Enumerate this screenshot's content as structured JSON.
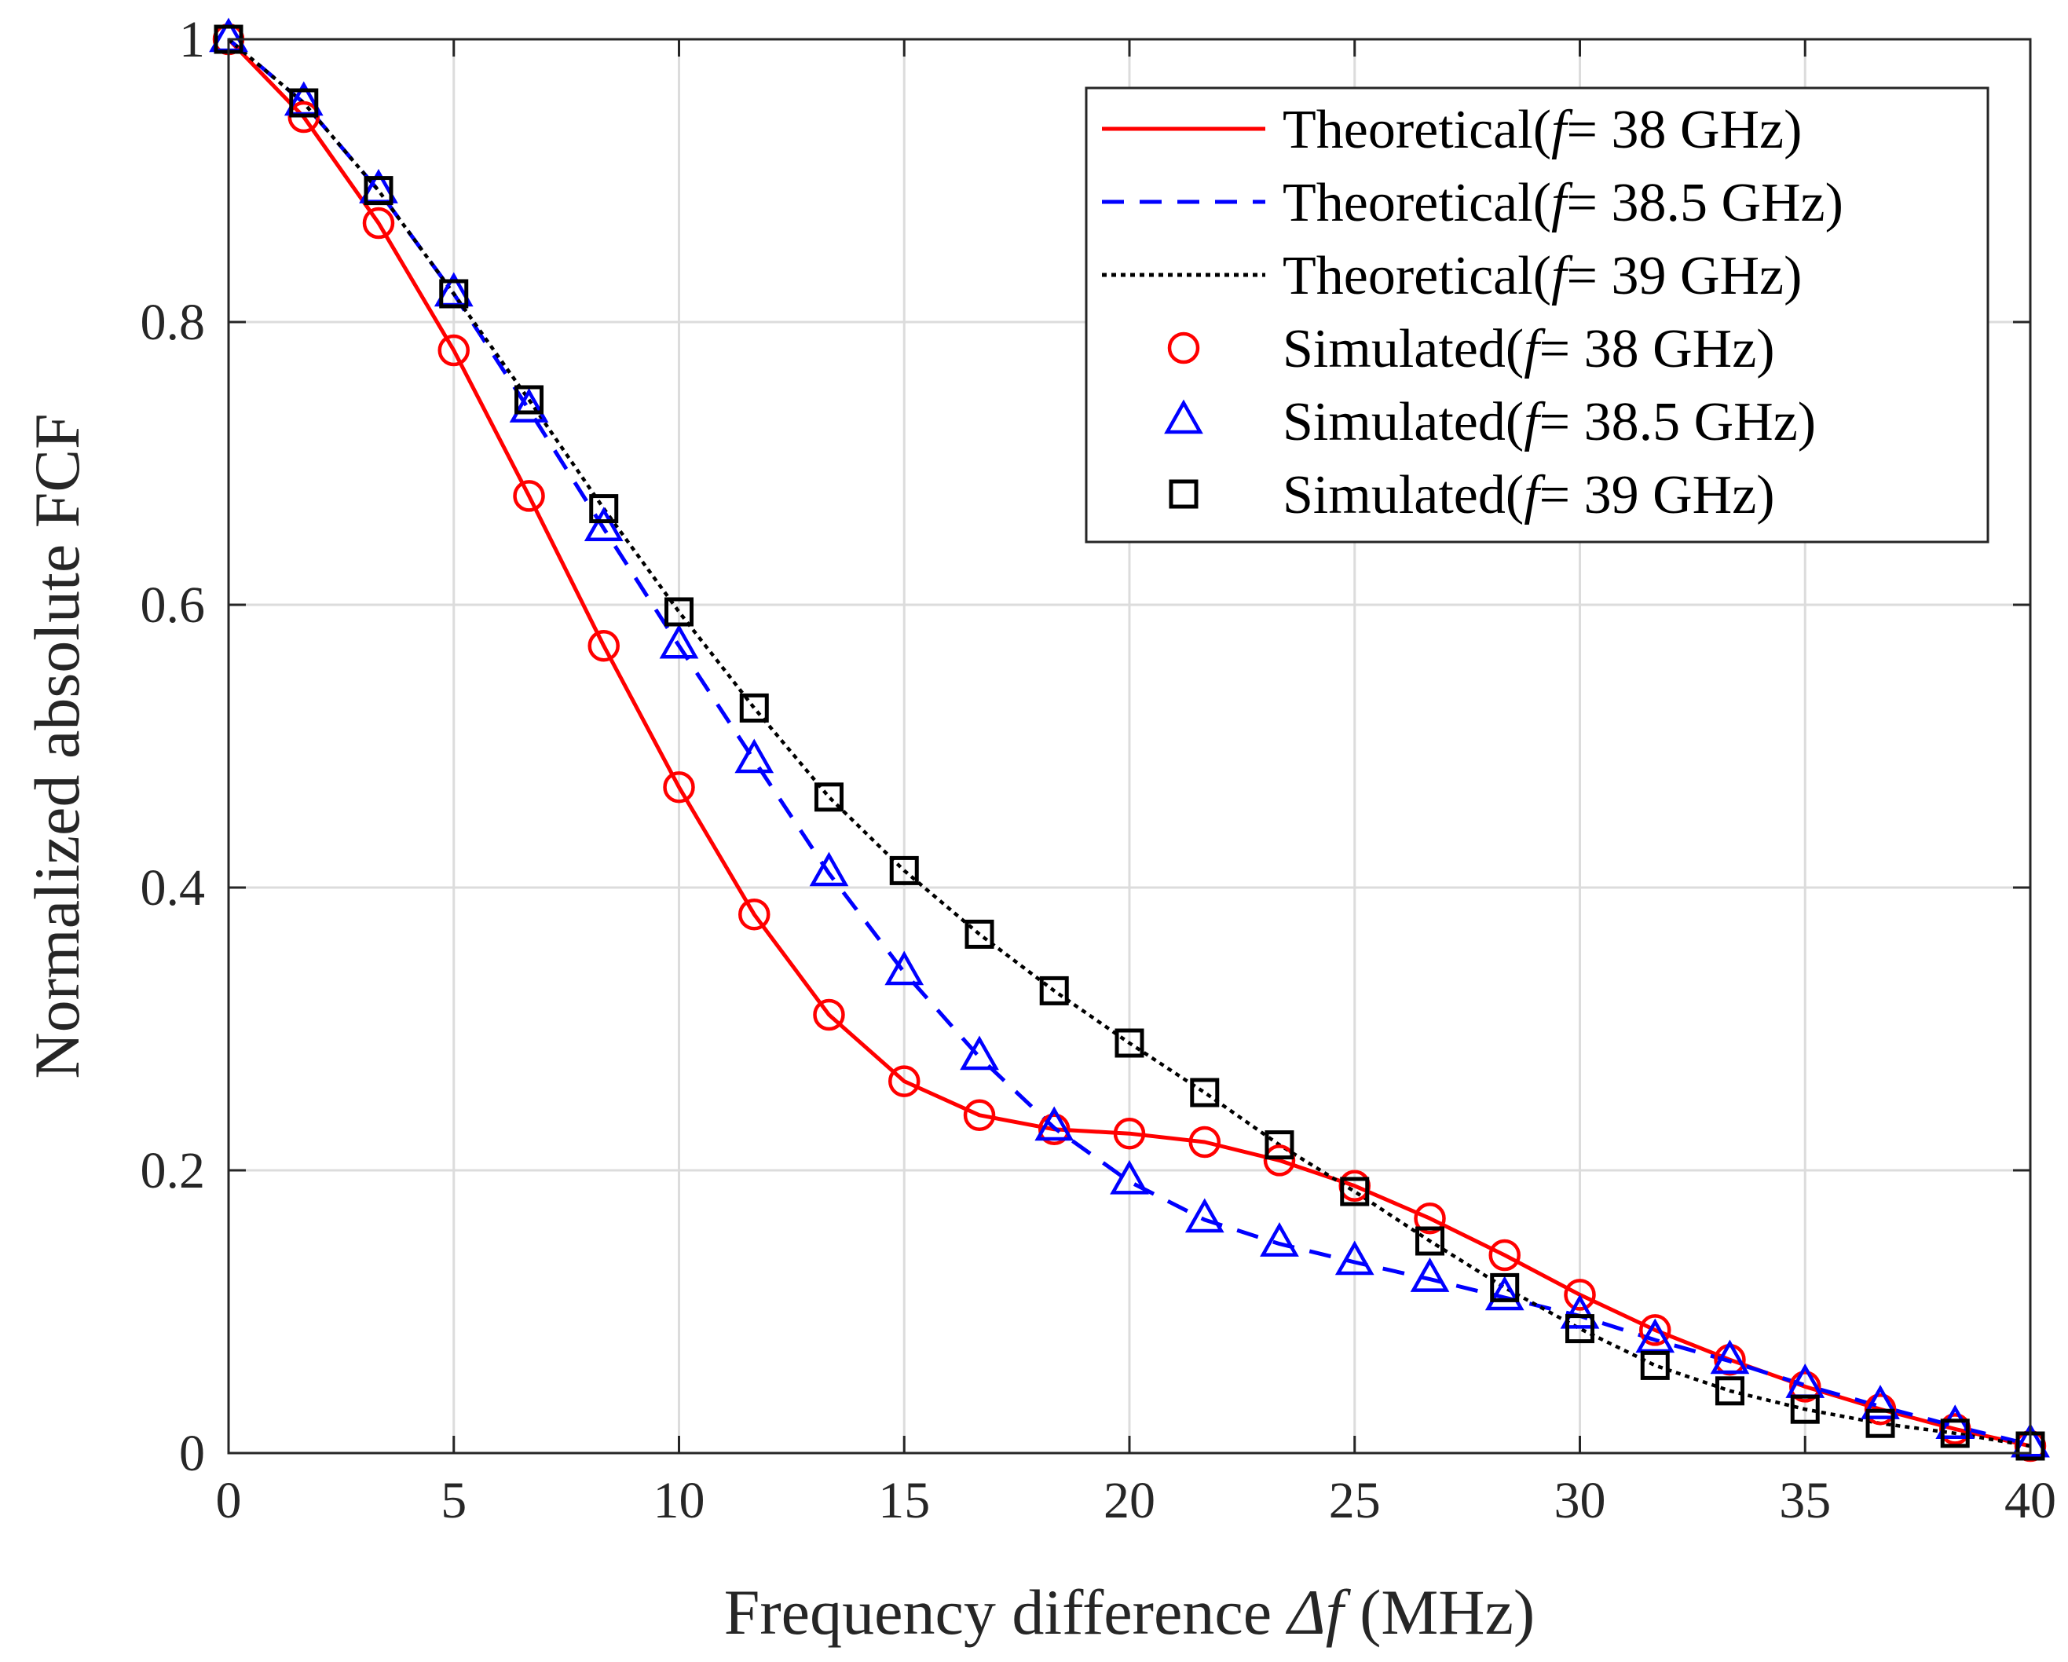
{
  "chart_data": {
    "type": "line",
    "title": "",
    "xlabel": {
      "prefix": "Frequency difference ",
      "symbol": "Δf",
      "suffix": " (MHz)"
    },
    "ylabel": "Normalized absolute  FCF",
    "xlim": [
      0,
      40
    ],
    "ylim": [
      0,
      1
    ],
    "xticks": [
      0,
      5,
      10,
      15,
      20,
      25,
      30,
      35,
      40
    ],
    "yticks": [
      0,
      0.2,
      0.4,
      0.6,
      0.8,
      1
    ],
    "ytick_labels": [
      "0",
      "0.2",
      "0.4",
      "0.6",
      "0.8",
      "1"
    ],
    "grid": true,
    "legend_position": "top-right",
    "x": [
      0,
      1.67,
      3.33,
      5,
      6.67,
      8.33,
      10,
      11.67,
      13.33,
      15,
      16.67,
      18.33,
      20,
      21.67,
      23.33,
      25,
      26.67,
      28.33,
      30,
      31.67,
      33.33,
      35,
      36.67,
      38.33,
      40
    ],
    "series": [
      {
        "name": "Theoretical",
        "prefix": "Theoretical(",
        "freq": "38 GHz",
        "kind": "line",
        "style": "solid",
        "color": "#ff0000",
        "values": [
          1.0,
          0.945,
          0.87,
          0.78,
          0.677,
          0.571,
          0.471,
          0.381,
          0.31,
          0.263,
          0.239,
          0.229,
          0.226,
          0.22,
          0.207,
          0.189,
          0.166,
          0.14,
          0.112,
          0.087,
          0.066,
          0.047,
          0.031,
          0.017,
          0.005
        ]
      },
      {
        "name": "Theoretical",
        "prefix": "Theoretical(",
        "freq": "38.5 GHz",
        "kind": "line",
        "style": "dashed",
        "color": "#0000ff",
        "values": [
          1.0,
          0.955,
          0.893,
          0.82,
          0.738,
          0.654,
          0.571,
          0.49,
          0.41,
          0.34,
          0.28,
          0.23,
          0.192,
          0.165,
          0.148,
          0.135,
          0.123,
          0.11,
          0.097,
          0.08,
          0.065,
          0.048,
          0.033,
          0.019,
          0.006
        ]
      },
      {
        "name": "Theoretical",
        "prefix": "Theoretical(",
        "freq": "39 GHz",
        "kind": "line",
        "style": "dotted",
        "color": "#000000",
        "values": [
          1.0,
          0.955,
          0.893,
          0.82,
          0.745,
          0.668,
          0.595,
          0.527,
          0.464,
          0.412,
          0.367,
          0.327,
          0.29,
          0.255,
          0.218,
          0.185,
          0.15,
          0.117,
          0.088,
          0.062,
          0.044,
          0.031,
          0.021,
          0.014,
          0.005
        ]
      },
      {
        "name": "Simulated",
        "prefix": "Simulated(",
        "freq": "38 GHz",
        "kind": "marker",
        "marker": "circle",
        "color": "#ff0000",
        "values": [
          1.0,
          0.945,
          0.87,
          0.78,
          0.677,
          0.571,
          0.471,
          0.381,
          0.31,
          0.263,
          0.239,
          0.229,
          0.226,
          0.22,
          0.207,
          0.189,
          0.166,
          0.14,
          0.112,
          0.087,
          0.066,
          0.047,
          0.031,
          0.017,
          0.005
        ]
      },
      {
        "name": "Simulated",
        "prefix": "Simulated(",
        "freq": "38.5 GHz",
        "kind": "marker",
        "marker": "triangle",
        "color": "#0000ff",
        "values": [
          1.0,
          0.955,
          0.893,
          0.82,
          0.738,
          0.654,
          0.571,
          0.49,
          0.41,
          0.34,
          0.28,
          0.23,
          0.192,
          0.165,
          0.148,
          0.135,
          0.123,
          0.11,
          0.097,
          0.08,
          0.065,
          0.048,
          0.033,
          0.019,
          0.006
        ]
      },
      {
        "name": "Simulated",
        "prefix": "Simulated(",
        "freq": "39 GHz",
        "kind": "marker",
        "marker": "square",
        "color": "#000000",
        "values": [
          1.0,
          0.955,
          0.893,
          0.82,
          0.745,
          0.668,
          0.595,
          0.527,
          0.464,
          0.412,
          0.367,
          0.327,
          0.29,
          0.255,
          0.218,
          0.185,
          0.15,
          0.117,
          0.088,
          0.062,
          0.044,
          0.031,
          0.021,
          0.014,
          0.005
        ]
      }
    ],
    "legend_f_symbol": "f",
    "legend_equals": "= "
  }
}
